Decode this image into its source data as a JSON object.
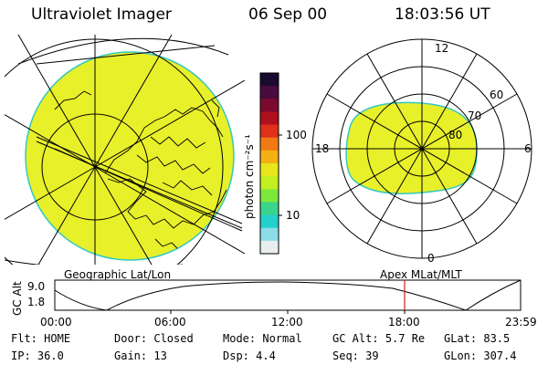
{
  "header": {
    "title": "Ultraviolet Imager",
    "date": "06 Sep 00",
    "time": "18:03:56 UT"
  },
  "geo_map": {
    "label": "Geographic Lat/Lon",
    "fill_color": "#e8f02a"
  },
  "colorbar": {
    "unit_label": "photon cm⁻²s⁻¹",
    "ticks": [
      "100",
      "10"
    ],
    "colors": [
      "#1a0a30",
      "#4a0b3e",
      "#7a0a2e",
      "#b00f1e",
      "#e0301a",
      "#f07a14",
      "#f5b014",
      "#e8e61a",
      "#c2ef1e",
      "#7de83a",
      "#3ad48c",
      "#25d0cc",
      "#8cdde8",
      "#e8eef0"
    ]
  },
  "polar_map": {
    "label": "Apex MLat/MLT",
    "mlt_labels": [
      "12",
      "18",
      "6",
      "0"
    ],
    "lat_labels": [
      "60",
      "70",
      "80"
    ],
    "fill_color": "#e8f02a"
  },
  "altitude_plot": {
    "ylabel": "GC Alt",
    "yticks": [
      "9.0",
      "1.8"
    ],
    "xticks": [
      "00:00",
      "06:00",
      "12:00",
      "18:00",
      "23:59"
    ],
    "marker_time": "18:03:56",
    "marker_color": "#c02020"
  },
  "status": {
    "row1": [
      {
        "key": "Flt:",
        "value": "HOME"
      },
      {
        "key": "Door:",
        "value": "Closed"
      },
      {
        "key": "Mode:",
        "value": "Normal"
      },
      {
        "key": "GC Alt:",
        "value": "5.7 Re"
      },
      {
        "key": "GLat:",
        "value": "83.5"
      }
    ],
    "row2": [
      {
        "key": "IP:",
        "value": "36.0"
      },
      {
        "key": "Gain:",
        "value": "13"
      },
      {
        "key": "Dsp:",
        "value": "4.4"
      },
      {
        "key": "Seq:",
        "value": "39"
      },
      {
        "key": "GLon:",
        "value": "307.4"
      }
    ]
  }
}
